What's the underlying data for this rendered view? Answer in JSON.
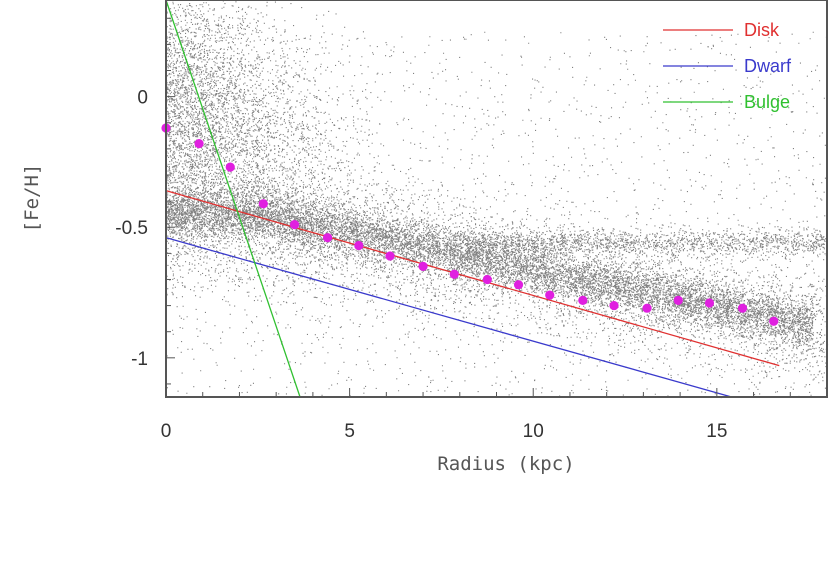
{
  "chart_data": {
    "type": "scatter",
    "title": "",
    "xlabel": "Radius (kpc)",
    "ylabel": "[Fe/H]",
    "xlim": [
      0,
      18
    ],
    "ylim": [
      -1.15,
      0.37
    ],
    "x_ticks": [
      0,
      5,
      10,
      15
    ],
    "x_tick_labels": [
      "0",
      "5",
      "10",
      "15"
    ],
    "y_ticks": [
      0,
      -0.5,
      -1
    ],
    "y_tick_labels": [
      "0",
      "-0.5",
      "-1"
    ],
    "grid": false,
    "legend_position": "top-right",
    "lines": [
      {
        "name": "Disk",
        "color": "#e03030",
        "x": [
          0,
          16.7
        ],
        "y": [
          -0.36,
          -1.03
        ]
      },
      {
        "name": "Dwarf",
        "color": "#3a3acc",
        "x": [
          0,
          15.4
        ],
        "y": [
          -0.54,
          -1.15
        ]
      },
      {
        "name": "Bulge",
        "color": "#30c030",
        "x": [
          0,
          3.65
        ],
        "y": [
          0.37,
          -1.15
        ]
      }
    ],
    "mean_points": {
      "color": "#e020e0",
      "x": [
        0.0,
        0.9,
        1.75,
        2.65,
        3.5,
        4.4,
        5.25,
        6.1,
        7.0,
        7.85,
        8.75,
        9.6,
        10.45,
        11.35,
        12.2,
        13.1,
        13.95,
        14.8,
        15.7,
        16.55
      ],
      "y": [
        -0.12,
        -0.18,
        -0.27,
        -0.41,
        -0.49,
        -0.54,
        -0.57,
        -0.61,
        -0.65,
        -0.68,
        -0.7,
        -0.72,
        -0.76,
        -0.78,
        -0.8,
        -0.81,
        -0.78,
        -0.79,
        -0.81,
        -0.86
      ]
    }
  }
}
